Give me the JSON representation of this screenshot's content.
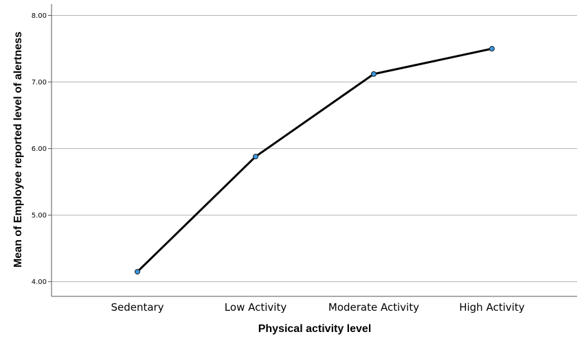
{
  "chart_data": {
    "type": "line",
    "categories": [
      "Sedentary",
      "Low Activity",
      "Moderate Activity",
      "High Activity"
    ],
    "values": [
      4.15,
      5.88,
      7.12,
      7.5
    ],
    "xlabel": "Physical activity level",
    "ylabel": "Mean of Employee reported level of alertness",
    "ylim": [
      3.78,
      8.17
    ],
    "yticks": [
      "4.00",
      "5.00",
      "6.00",
      "7.00",
      "8.00"
    ],
    "grid": true,
    "line_color": "#000000",
    "marker_color": "#3a97e0"
  }
}
